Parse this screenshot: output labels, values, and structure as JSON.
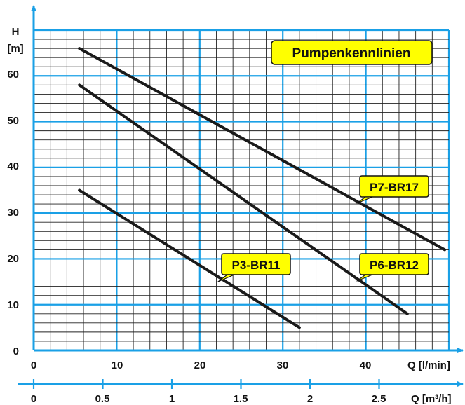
{
  "colors": {
    "accent": "#1aa0e6",
    "line": "#1a1a1a",
    "label_bg": "#ffff00",
    "text": "#111111"
  },
  "chart_data": {
    "type": "line",
    "title": "Pumpenkennlinien",
    "ylabel_line1": "H",
    "ylabel_line2": "[m]",
    "xlabel": "Q [l/min]",
    "x2label": "Q [m³/h]",
    "xlim": [
      0,
      50
    ],
    "ylim": [
      0,
      70
    ],
    "x2lim": [
      0,
      3
    ],
    "xticks": [
      "0",
      "10",
      "20",
      "30",
      "40"
    ],
    "yticks": [
      "0",
      "10",
      "20",
      "30",
      "40",
      "50",
      "60"
    ],
    "x2ticks": [
      "0",
      "0.5",
      "1",
      "1.5",
      "2",
      "2.5"
    ],
    "grid": true,
    "series": [
      {
        "name": "P7-BR17",
        "x": [
          5.5,
          49.5
        ],
        "y": [
          66,
          22
        ]
      },
      {
        "name": "P6-BR12",
        "x": [
          5.5,
          45
        ],
        "y": [
          58,
          8
        ]
      },
      {
        "name": "P3-BR11",
        "x": [
          5.5,
          32
        ],
        "y": [
          35,
          5
        ]
      }
    ]
  }
}
